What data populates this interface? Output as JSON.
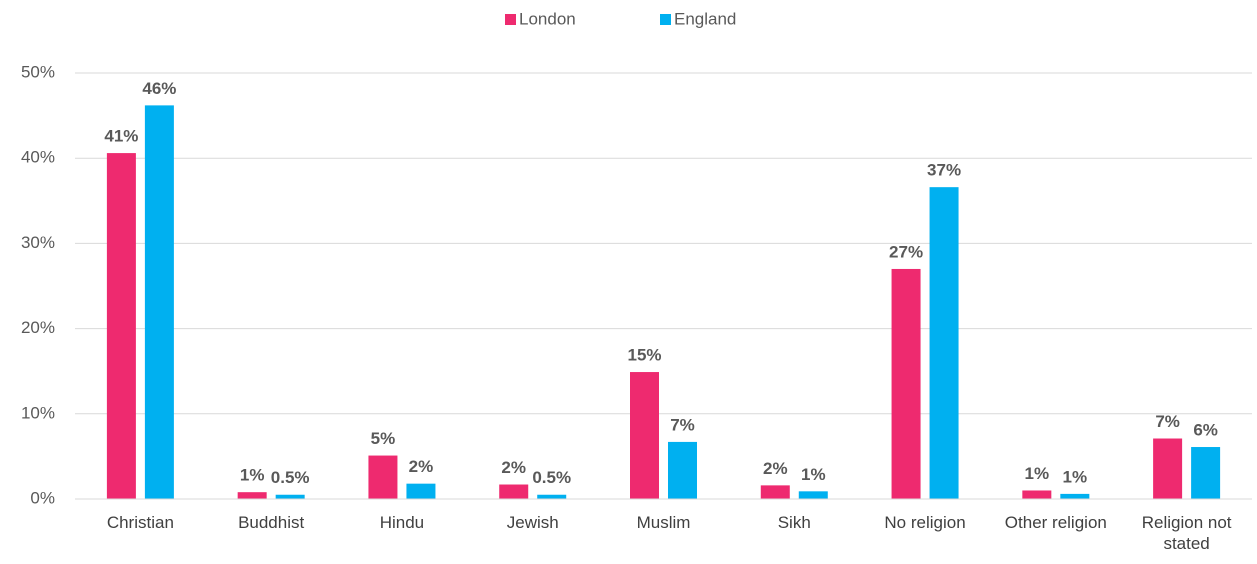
{
  "chart_data": {
    "type": "bar",
    "categories": [
      "Christian",
      "Buddhist",
      "Hindu",
      "Jewish",
      "Muslim",
      "Sikh",
      "No religion",
      "Other religion",
      "Religion not stated"
    ],
    "series": [
      {
        "name": "London",
        "color": "#ee2a6f",
        "values": [
          40.6,
          0.8,
          5.1,
          1.7,
          14.9,
          1.6,
          27,
          1.0,
          7.1
        ],
        "value_labels": [
          "41%",
          "1%",
          "5%",
          "2%",
          "15%",
          "2%",
          "27%",
          "1%",
          "7%"
        ]
      },
      {
        "name": "England",
        "color": "#00b0f0",
        "values": [
          46.2,
          0.5,
          1.8,
          0.5,
          6.7,
          0.9,
          36.6,
          0.6,
          6.1
        ],
        "value_labels": [
          "46%",
          "0.5%",
          "2%",
          "0.5%",
          "7%",
          "1%",
          "37%",
          "1%",
          "6%"
        ]
      }
    ],
    "ylim": [
      0,
      50
    ],
    "yticks": [
      {
        "value": 0,
        "label": "0%"
      },
      {
        "value": 10,
        "label": "10%"
      },
      {
        "value": 20,
        "label": "20%"
      },
      {
        "value": 30,
        "label": "30%"
      },
      {
        "value": 40,
        "label": "40%"
      },
      {
        "value": 50,
        "label": "50%"
      }
    ],
    "grid": true,
    "legend": "top"
  }
}
